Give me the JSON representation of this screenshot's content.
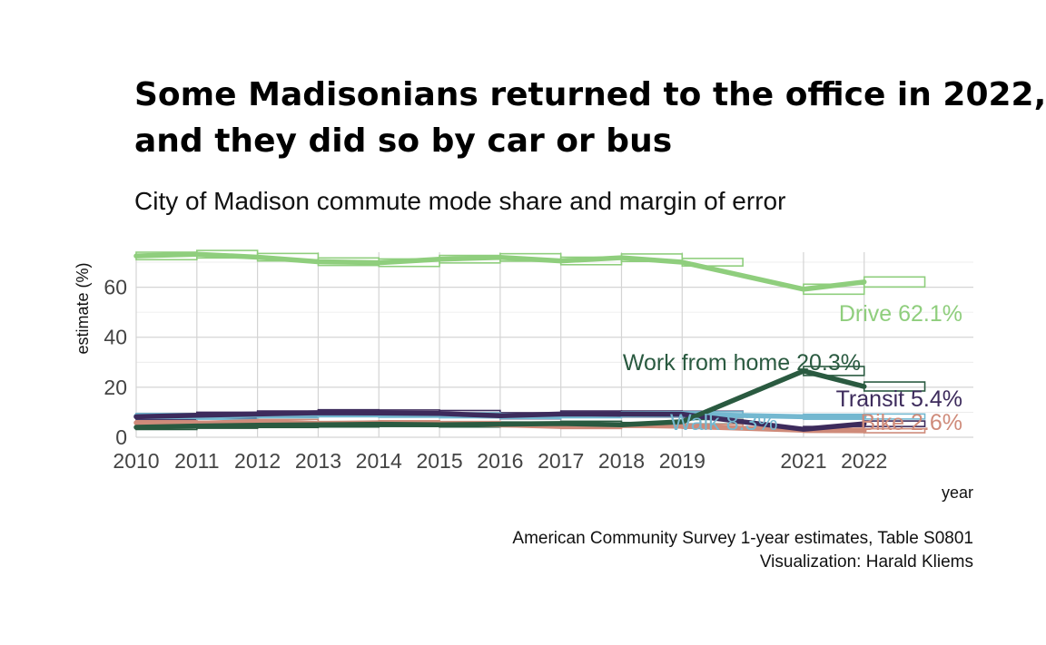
{
  "chart_data": {
    "type": "line",
    "title_line1": "Some Madisonians returned to the office in 2022,",
    "title_line2": "and they did so by car or bus",
    "subtitle": "City of Madison commute mode share and margin of error",
    "xlabel": "year",
    "ylabel": "estimate (%)",
    "caption_line1": "American Community Survey 1-year estimates, Table S0801",
    "caption_line2": "Visualization: Harald Kliems",
    "x": [
      2010,
      2011,
      2012,
      2013,
      2014,
      2015,
      2016,
      2017,
      2018,
      2019,
      2021,
      2022
    ],
    "x_tick_labels": [
      "2010",
      "2011",
      "2012",
      "2013",
      "2014",
      "2015",
      "2016",
      "2017",
      "2018",
      "2019",
      "2021",
      "2022"
    ],
    "xlim": [
      2010,
      2023.8
    ],
    "ylim": [
      0,
      74
    ],
    "y_ticks": [
      0,
      20,
      40,
      60
    ],
    "y_tick_labels": [
      "0",
      "20",
      "40",
      "60"
    ],
    "grid": true,
    "legend": "none (direct labels at line ends)",
    "series": [
      {
        "label": "Drive 62.1%",
        "color": "#8fce7d",
        "values": [
          72.5,
          73.2,
          72.0,
          70.2,
          69.8,
          71.2,
          71.9,
          70.5,
          71.8,
          70.0,
          59.2,
          62.1
        ],
        "moe": [
          1.5,
          1.5,
          1.5,
          1.5,
          1.5,
          1.5,
          1.5,
          1.5,
          1.5,
          1.5,
          2.0,
          2.0
        ]
      },
      {
        "label": "Work from home 20.3%",
        "color": "#2a5a40",
        "values": [
          4.0,
          4.5,
          4.8,
          5.0,
          5.2,
          5.0,
          5.2,
          5.5,
          5.0,
          6.2,
          26.5,
          20.3
        ],
        "moe": [
          0.9,
          0.9,
          0.9,
          0.9,
          0.9,
          0.9,
          0.9,
          0.9,
          0.9,
          0.9,
          1.8,
          1.8
        ]
      },
      {
        "label": "Transit 5.4%",
        "color": "#3d2b5c",
        "values": [
          8.2,
          8.8,
          9.3,
          9.8,
          9.7,
          9.5,
          8.6,
          9.3,
          9.3,
          9.2,
          3.2,
          5.4
        ],
        "moe": [
          1.2,
          1.2,
          1.2,
          1.2,
          1.2,
          1.2,
          1.2,
          1.2,
          1.2,
          1.2,
          1.1,
          1.1
        ]
      },
      {
        "label": "Walk 8.3%",
        "color": "#74b8d0",
        "values": [
          8.5,
          8.2,
          8.8,
          9.2,
          9.0,
          8.8,
          8.5,
          8.8,
          9.2,
          9.2,
          8.2,
          8.3
        ],
        "moe": [
          1.0,
          1.0,
          1.0,
          1.0,
          1.0,
          1.0,
          1.0,
          1.0,
          1.0,
          1.0,
          1.0,
          1.0
        ]
      },
      {
        "label": "Bike 2.6%",
        "color": "#cf8b7a",
        "values": [
          5.8,
          5.6,
          6.3,
          5.5,
          5.8,
          5.5,
          5.0,
          4.3,
          4.8,
          4.4,
          2.8,
          2.6
        ],
        "moe": [
          0.8,
          0.8,
          0.8,
          0.8,
          0.8,
          0.8,
          0.8,
          0.8,
          0.8,
          0.8,
          0.8,
          0.8
        ]
      }
    ]
  }
}
